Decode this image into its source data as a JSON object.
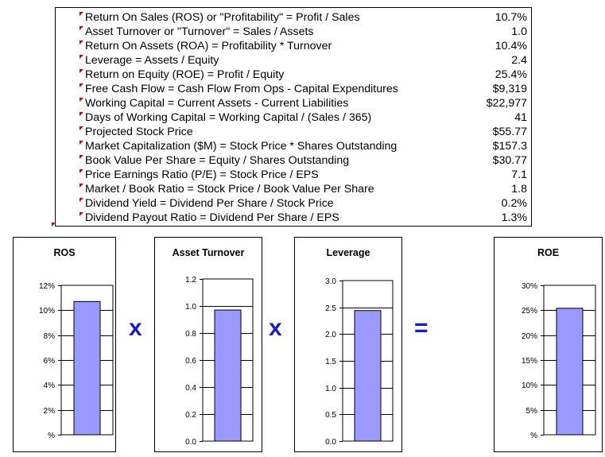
{
  "metrics": [
    {
      "label": "Return On Sales (ROS) or \"Profitability\" = Profit / Sales",
      "value": "10.7%"
    },
    {
      "label": "Asset Turnover or \"Turnover\" = Sales / Assets",
      "value": "1.0"
    },
    {
      "label": "Return On Assets (ROA) = Profitability * Turnover",
      "value": "10.4%"
    },
    {
      "label": "Leverage = Assets / Equity",
      "value": "2.4"
    },
    {
      "label": "Return on Equity (ROE) = Profit / Equity",
      "value": "25.4%"
    },
    {
      "label": "Free Cash Flow = Cash Flow From Ops - Capital Expenditures",
      "value": "$9,319"
    },
    {
      "label": "Working Capital = Current Assets - Current Liabilities",
      "value": "$22,977"
    },
    {
      "label": "Days of Working Capital = Working Capital / (Sales / 365)",
      "value": "41"
    },
    {
      "label": "Projected Stock Price",
      "value": "$55.77"
    },
    {
      "label": "Market Capitalization ($M) = Stock Price * Shares Outstanding",
      "value": "$157.3"
    },
    {
      "label": "Book Value Per Share = Equity / Shares Outstanding",
      "value": "$30.77"
    },
    {
      "label": "Price Earnings Ratio (P/E) = Stock Price / EPS",
      "value": "7.1"
    },
    {
      "label": "Market / Book Ratio = Stock Price / Book Value Per Share",
      "value": "1.8"
    },
    {
      "label": "Dividend Yield = Dividend Per Share / Stock Price",
      "value": "0.2%"
    },
    {
      "label": "Dividend Payout Ratio = Dividend Per Share / EPS",
      "value": "1.3%"
    }
  ],
  "operators": {
    "times1": "x",
    "times2": "x",
    "equals": "="
  },
  "colors": {
    "bar_fill": "#9999ff",
    "bar_stroke": "#000000",
    "operator": "#1a1acc",
    "comment_marker": "#d40000"
  },
  "chart_data": [
    {
      "type": "bar",
      "title": "ROS",
      "value": 10.7,
      "yticks": [
        "%",
        "2%",
        "4%",
        "6%",
        "8%",
        "10%",
        "12%"
      ],
      "ylim": [
        0,
        12
      ],
      "grid": true
    },
    {
      "type": "bar",
      "title": "Asset Turnover",
      "value": 0.97,
      "yticks": [
        "0.0",
        "0.2",
        "0.4",
        "0.6",
        "0.8",
        "1.0",
        "1.2"
      ],
      "ylim": [
        0,
        1.2
      ],
      "grid": true
    },
    {
      "type": "bar",
      "title": "Leverage",
      "value": 2.44,
      "yticks": [
        "0.0",
        "0.5",
        "1.0",
        "1.5",
        "2.0",
        "2.5",
        "3.0"
      ],
      "ylim": [
        0,
        3.0
      ],
      "grid": true
    },
    {
      "type": "bar",
      "title": "ROE",
      "value": 25.4,
      "yticks": [
        "%",
        "5%",
        "10%",
        "15%",
        "20%",
        "25%",
        "30%"
      ],
      "ylim": [
        0,
        30
      ],
      "grid": true
    }
  ]
}
